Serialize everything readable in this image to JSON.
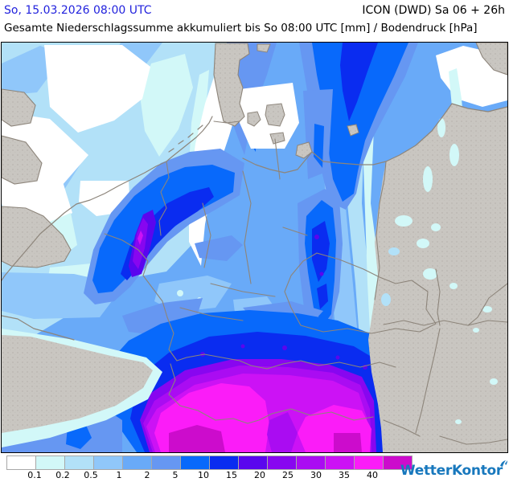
{
  "header": {
    "datetime": "So, 15.03.2026 08:00 UTC",
    "datetime_color": "#2222dd",
    "model": "ICON (DWD) Sa 06 + 26h",
    "subtitle": "Gesamte Niederschlagssumme akkumuliert bis So 08:00 UTC [mm] / Bodendruck [hPa]"
  },
  "legend": {
    "unit": "mm",
    "bins": [
      {
        "color": "#ffffff",
        "label": "0.1"
      },
      {
        "color": "#d2f8f8",
        "label": "0.2"
      },
      {
        "color": "#b2e1f8",
        "label": "0.5"
      },
      {
        "color": "#90c7fa",
        "label": "1"
      },
      {
        "color": "#69aaf8",
        "label": "2"
      },
      {
        "color": "#6697f2",
        "label": "5"
      },
      {
        "color": "#0869fb",
        "label": "10"
      },
      {
        "color": "#0a2cf0",
        "label": "15"
      },
      {
        "color": "#5a06ee",
        "label": "20"
      },
      {
        "color": "#8806f0",
        "label": "25"
      },
      {
        "color": "#aa0cf2",
        "label": "30"
      },
      {
        "color": "#cc12f5",
        "label": "35"
      },
      {
        "color": "#fb1cf8",
        "label": "40"
      },
      {
        "color": "#cc0ccc",
        "label": ""
      }
    ]
  },
  "map": {
    "land_color": "#c9c6c1",
    "land_speckle_color": "#b9b6b0",
    "border_line_color": "#8d857b",
    "frame_color": "#000000"
  },
  "branding": {
    "logo_text": "WetterKontor",
    "logo_color": "#1878bd"
  }
}
